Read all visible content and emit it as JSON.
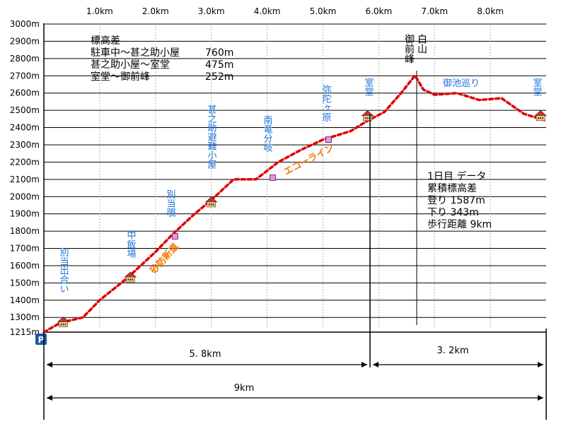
{
  "chart_data": {
    "type": "line",
    "ylim": [
      1215,
      3000
    ],
    "xlim": [
      0,
      9
    ],
    "y_ticks": [
      "3000m",
      "2900m",
      "2800m",
      "2700m",
      "2600m",
      "2500m",
      "2400m",
      "2300m",
      "2200m",
      "2100m",
      "2000m",
      "1900m",
      "1800m",
      "1700m",
      "1600m",
      "1500m",
      "1400m",
      "1300m",
      "1215m"
    ],
    "y_tick_values": [
      3000,
      2900,
      2800,
      2700,
      2600,
      2500,
      2400,
      2300,
      2200,
      2100,
      2000,
      1900,
      1800,
      1700,
      1600,
      1500,
      1400,
      1300,
      1215
    ],
    "x_ticks": [
      "1.0km",
      "2.0km",
      "3.0km",
      "4.0km",
      "5.0km",
      "6.0km",
      "7.0km",
      "8.0km"
    ],
    "x_tick_values": [
      1,
      2,
      3,
      4,
      5,
      6,
      7,
      8
    ],
    "grid": true,
    "series": [
      {
        "color": "#e00000",
        "x": [
          0,
          0.3,
          0.7,
          1.0,
          1.5,
          2.0,
          2.3,
          2.7,
          3.0,
          3.4,
          3.8,
          4.2,
          4.6,
          5.0,
          5.5,
          5.8,
          6.1,
          6.4,
          6.65,
          6.8,
          7.0,
          7.4,
          7.8,
          8.2,
          8.6,
          9.0
        ],
        "y": [
          1215,
          1270,
          1300,
          1400,
          1530,
          1680,
          1780,
          1900,
          1980,
          2100,
          2100,
          2200,
          2270,
          2330,
          2380,
          2440,
          2490,
          2600,
          2702,
          2620,
          2590,
          2600,
          2560,
          2570,
          2480,
          2440
        ]
      }
    ]
  },
  "notes": {
    "elevation_title": "標高差",
    "elevation_lines": [
      "駐車中〜甚之助小屋",
      "甚之助小屋〜室堂",
      "室堂〜御前峰"
    ],
    "elevation_values": [
      "760m",
      "475m",
      "252m"
    ],
    "day_title": "1日目  データ",
    "day_lines": [
      "累積標高差",
      "登り  1587m",
      "下り    343m",
      "歩行距離  9km"
    ]
  },
  "places": {
    "betto_deai": "別当出合い",
    "chuhanba": "中飯場",
    "betto_nozoki": "別当覗",
    "jinnosuke": "甚之助避難小屋",
    "nanryu": "南竜分岐",
    "midagahara": "弥陀ヶ原",
    "murodo1": "室堂",
    "gozengamine": "御前峰",
    "hakusan": "白山",
    "oike": "御池巡り",
    "murodo2": "室堂"
  },
  "trails": {
    "sabo": "砂防新道",
    "echo": "エコーライン"
  },
  "parking": "P",
  "distances": {
    "first": "5. 8km",
    "second": "3. 2km",
    "total": "9km"
  },
  "colors": {
    "profile": "#e00000",
    "place_text": "#1a73d9",
    "trail_text": "#f07800",
    "parking_bg": "#1e5aa8",
    "marker_pink": "#e896d8"
  },
  "markers": [
    {
      "kind": "hut",
      "x": 0.35,
      "y": 1270
    },
    {
      "kind": "hut",
      "x": 1.55,
      "y": 1530
    },
    {
      "kind": "square",
      "x": 2.35,
      "y": 1770
    },
    {
      "kind": "hut",
      "x": 3.0,
      "y": 1965
    },
    {
      "kind": "square",
      "x": 4.1,
      "y": 2110
    },
    {
      "kind": "square",
      "x": 5.1,
      "y": 2330
    },
    {
      "kind": "hut",
      "x": 5.8,
      "y": 2465
    },
    {
      "kind": "hut",
      "x": 8.9,
      "y": 2465
    }
  ]
}
